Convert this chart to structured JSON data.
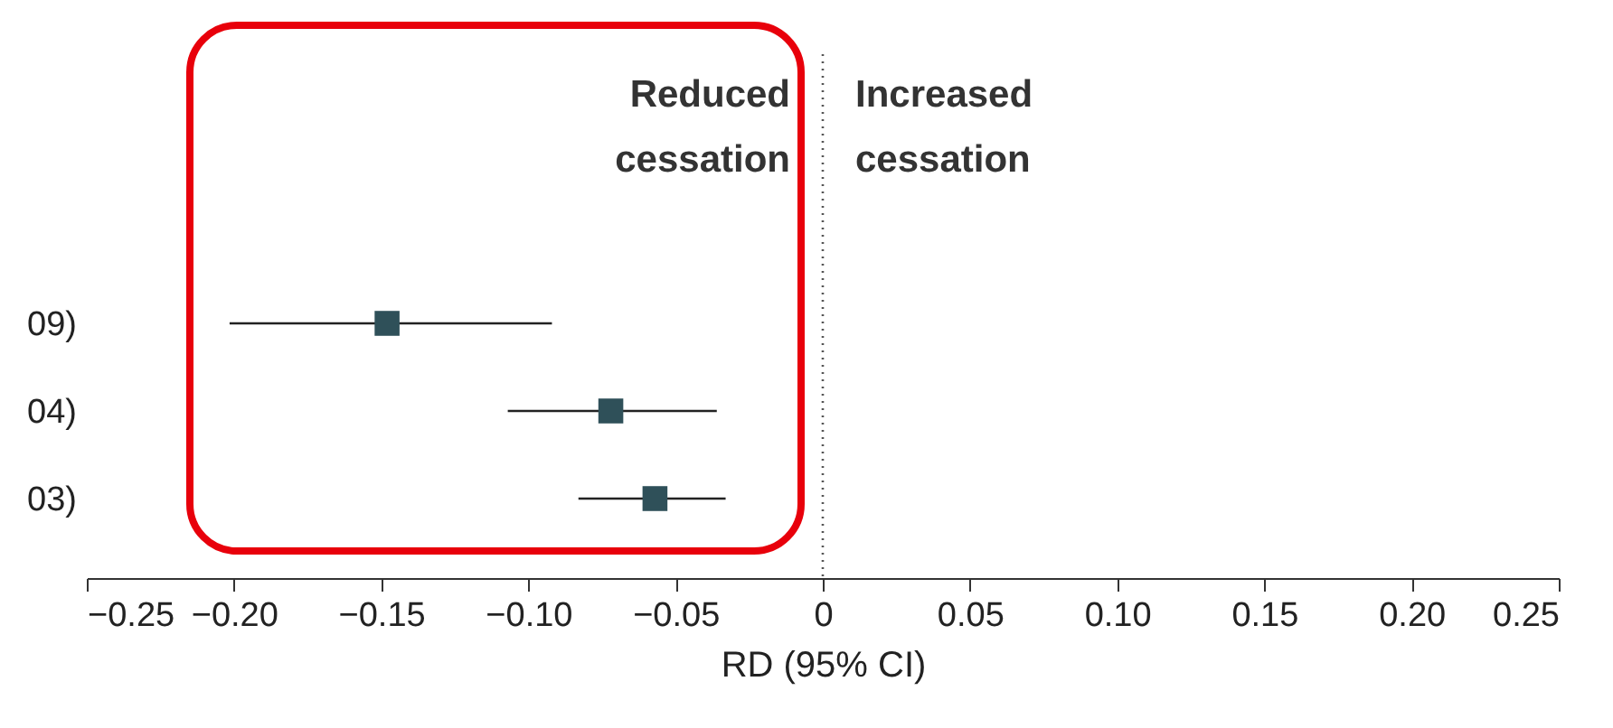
{
  "chart_data": {
    "type": "scatter",
    "xlabel": "RD (95% CI)",
    "categories": [
      "09)",
      "04)",
      "03)"
    ],
    "series": [
      {
        "color": "#2f5059",
        "values": [
          -0.148,
          -0.072,
          -0.057
        ],
        "errors": [
          [
            -0.2015,
            -0.092
          ],
          [
            -0.107,
            -0.036
          ],
          [
            -0.083,
            -0.033
          ]
        ]
      }
    ],
    "xlim": [
      -0.25,
      0.25
    ],
    "xticks": [
      {
        "value": -0.25,
        "label": "−0.25"
      },
      {
        "value": -0.2,
        "label": "−0.20"
      },
      {
        "value": -0.15,
        "label": "−0.15"
      },
      {
        "value": -0.1,
        "label": "−0.10"
      },
      {
        "value": -0.05,
        "label": "−0.05"
      },
      {
        "value": 0,
        "label": "0"
      },
      {
        "value": 0.05,
        "label": "0.05"
      },
      {
        "value": 0.1,
        "label": "0.10"
      },
      {
        "value": 0.15,
        "label": "0.15"
      },
      {
        "value": 0.2,
        "label": "0.20"
      },
      {
        "value": 0.25,
        "label": "0.25"
      }
    ],
    "ref_lines": [
      {
        "axis": "x",
        "value": 0,
        "line_style": "dotted",
        "color": "#555555"
      }
    ],
    "annotations": [
      "Reduced cessation",
      "Increased cessation"
    ],
    "marker": "square",
    "orientation": "horizontal",
    "grid": false
  }
}
